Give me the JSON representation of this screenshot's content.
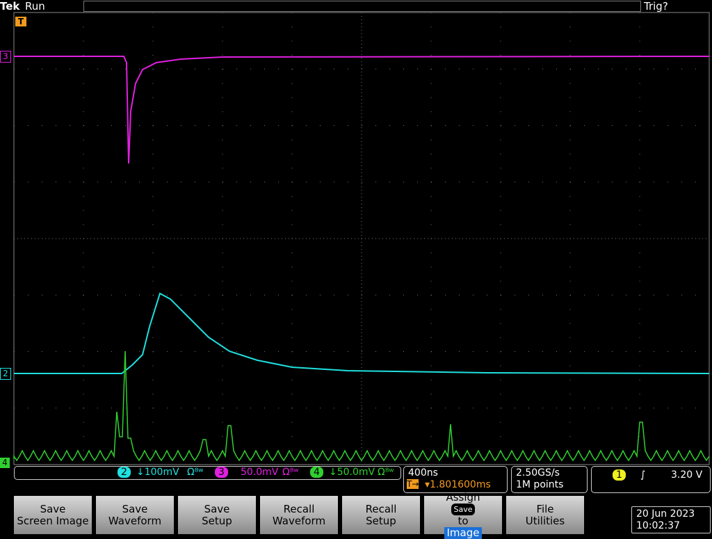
{
  "header": {
    "brand": "Tek",
    "status": "Run",
    "trigger_status": "Trig?"
  },
  "markers": {
    "trigger": "T",
    "ch3": "3",
    "ch2": "2",
    "ch4": "4"
  },
  "channel_bar": {
    "ch2": {
      "label": "2",
      "scale": "↓100mV",
      "extra": "Ω⁸ʷ"
    },
    "ch3": {
      "label": "3",
      "scale": "50.0mV",
      "extra": "Ω⁸ʷ"
    },
    "ch4": {
      "label": "4",
      "scale": "↓50.0mV",
      "extra": "Ω⁸ʷ"
    }
  },
  "timebase": {
    "scale": "400ns",
    "position_prefix": "T→",
    "position": "▾1.801600ms"
  },
  "acquisition": {
    "rate": "2.50GS/s",
    "length": "1M points"
  },
  "trigger": {
    "source": "1",
    "slope": "∫",
    "level": "3.20 V"
  },
  "buttons": [
    {
      "lines": [
        "Save",
        "Screen Image"
      ]
    },
    {
      "lines": [
        "Save",
        "Waveform"
      ]
    },
    {
      "lines": [
        "Save",
        "Setup"
      ]
    },
    {
      "lines": [
        "Recall",
        "Waveform"
      ]
    },
    {
      "lines": [
        "Recall",
        "Setup"
      ]
    },
    {
      "lines": [
        "Assign",
        "Save",
        "to",
        "Image"
      ]
    },
    {
      "lines": [
        "File",
        "Utilities"
      ]
    }
  ],
  "datetime": {
    "date": "20 Jun 2023",
    "time": "10:02:37"
  }
}
